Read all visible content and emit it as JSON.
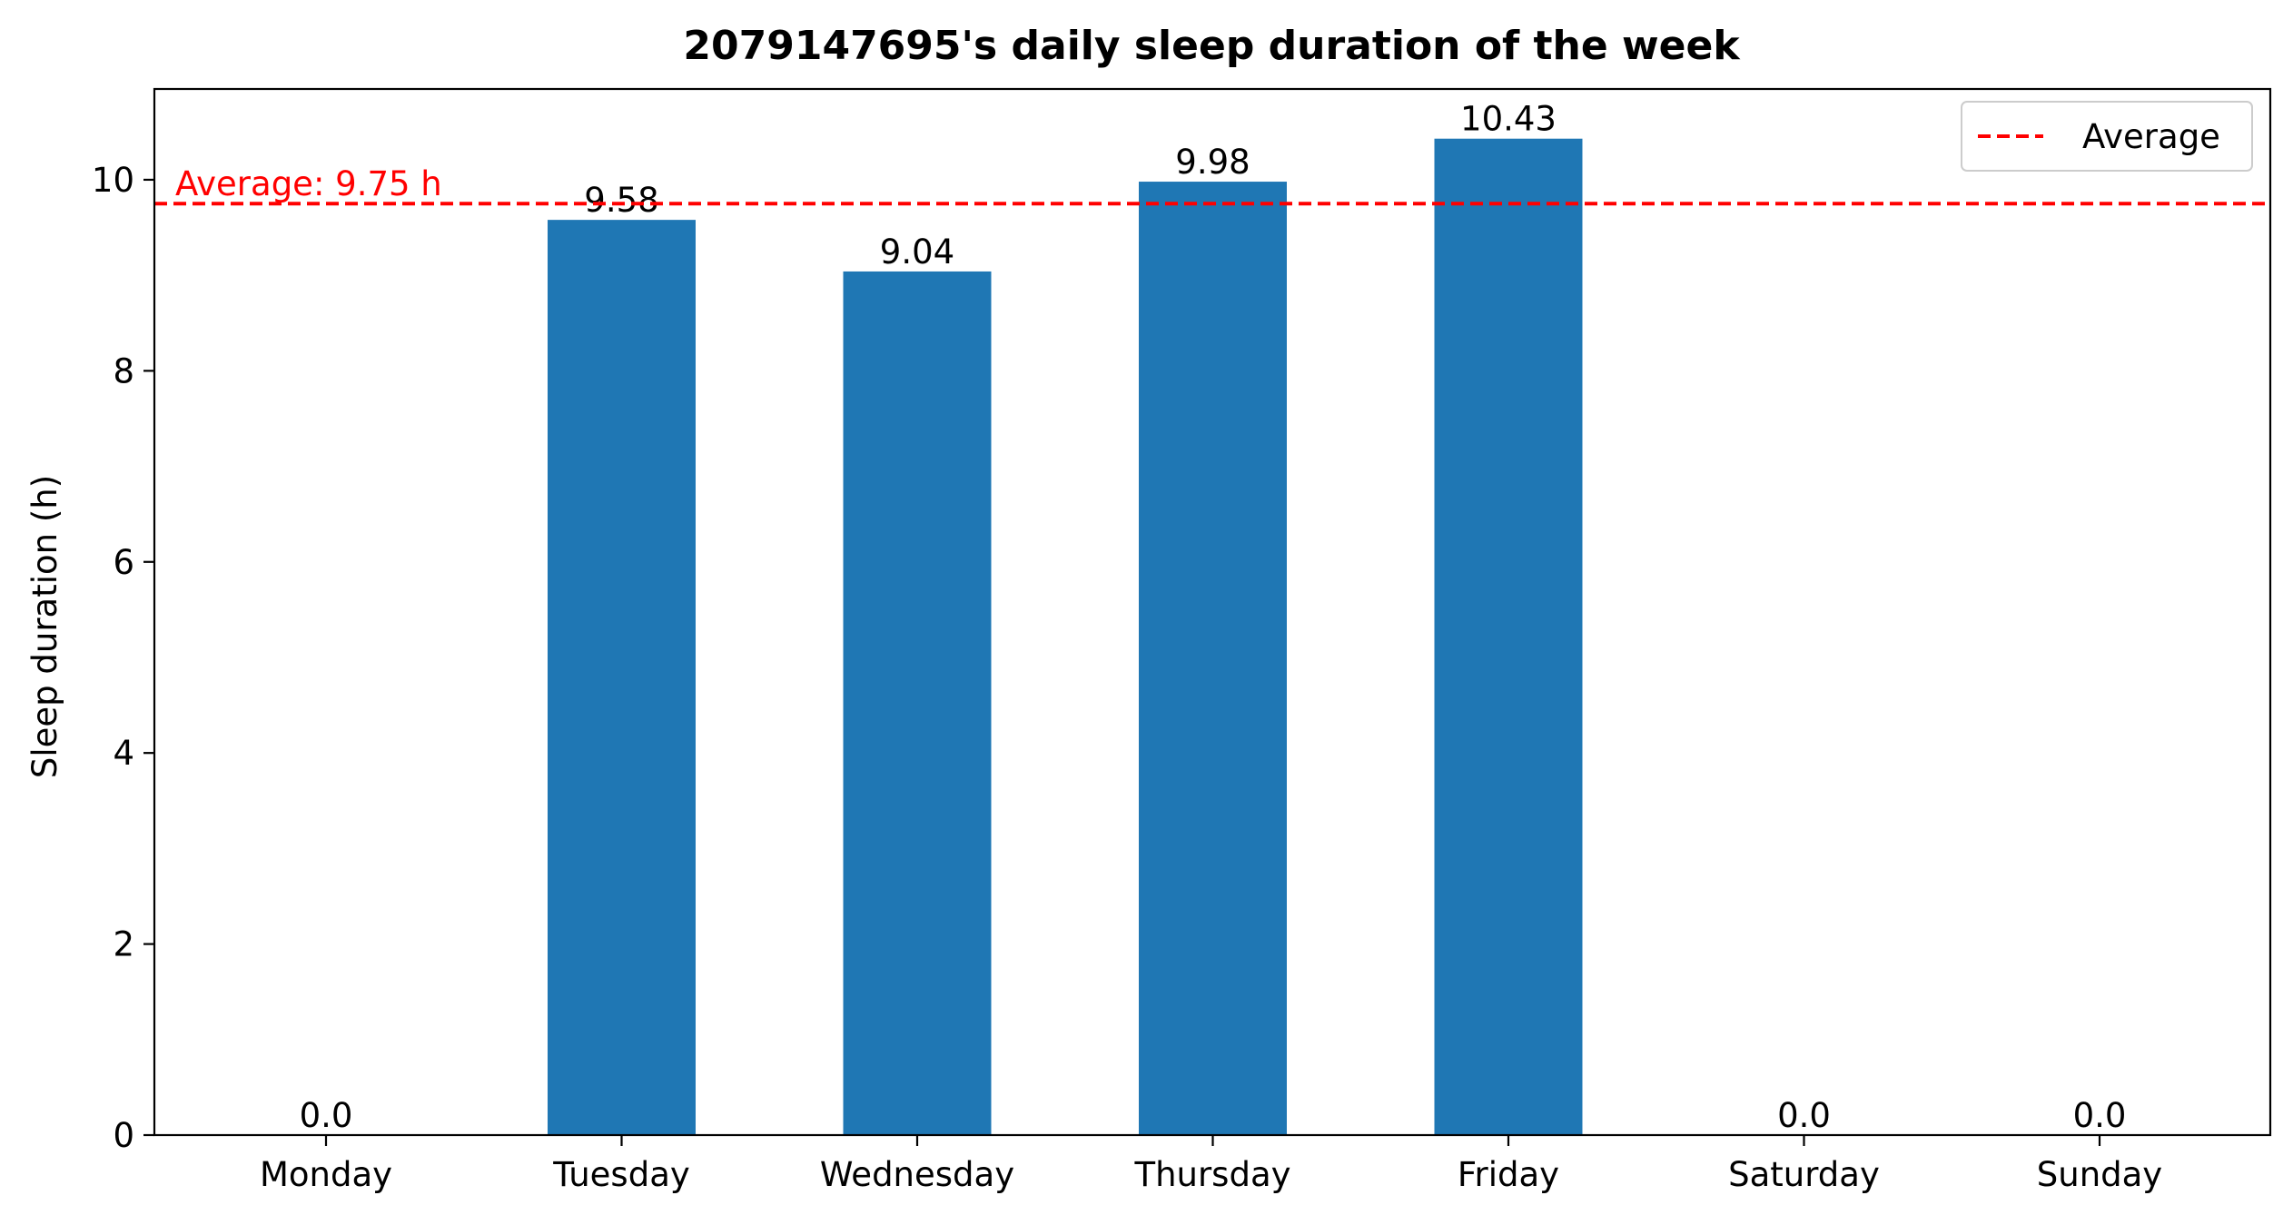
{
  "chart_data": {
    "type": "bar",
    "title": "2079147695's daily sleep duration of the week",
    "xlabel": "",
    "ylabel": "Sleep duration (h)",
    "categories": [
      "Monday",
      "Tuesday",
      "Wednesday",
      "Thursday",
      "Friday",
      "Saturday",
      "Sunday"
    ],
    "values": [
      0.0,
      9.58,
      9.04,
      9.98,
      10.43,
      0.0,
      0.0
    ],
    "data_labels": [
      "0.0",
      "9.58",
      "9.04",
      "9.98",
      "10.43",
      "0.0",
      "0.0"
    ],
    "ylim": [
      0,
      10.95
    ],
    "yticks": [
      0,
      2,
      4,
      6,
      8,
      10
    ],
    "bar_color": "#1f77b4",
    "average": {
      "value": 9.75,
      "label": "Average: 9.75 h",
      "color": "#ff0000",
      "style": "dashed"
    },
    "legend": {
      "entries": [
        "Average"
      ],
      "placement": "top-right"
    },
    "grid": false
  }
}
